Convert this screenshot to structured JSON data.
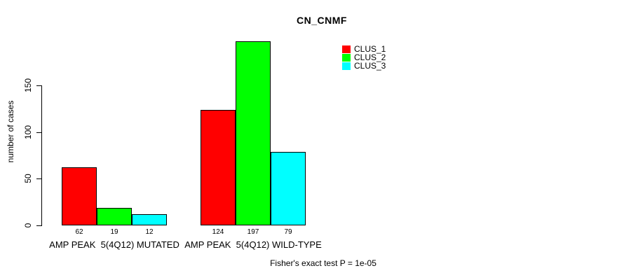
{
  "title": "CN_CNMF",
  "footer": "Fisher's exact test P = 1e-05",
  "chart_data": {
    "type": "bar",
    "title": "CN_CNMF",
    "xlabel": "",
    "ylabel": "number of cases",
    "categories": [
      "AMP PEAK  5(4Q12) MUTATED",
      "AMP PEAK  5(4Q12) WILD-TYPE"
    ],
    "series": [
      {
        "name": "CLUS_1",
        "color": "#ff0000",
        "values": [
          62,
          124
        ]
      },
      {
        "name": "CLUS_2",
        "color": "#00ff00",
        "values": [
          19,
          197
        ]
      },
      {
        "name": "CLUS_3",
        "color": "#00ffff",
        "values": [
          12,
          79
        ]
      }
    ],
    "yticks": [
      0,
      50,
      100,
      150
    ],
    "ylim": [
      0,
      150
    ],
    "bar_value_labels": true,
    "legend_position": "top-right",
    "grid": false,
    "annotation": "Fisher's exact test P = 1e-05"
  }
}
